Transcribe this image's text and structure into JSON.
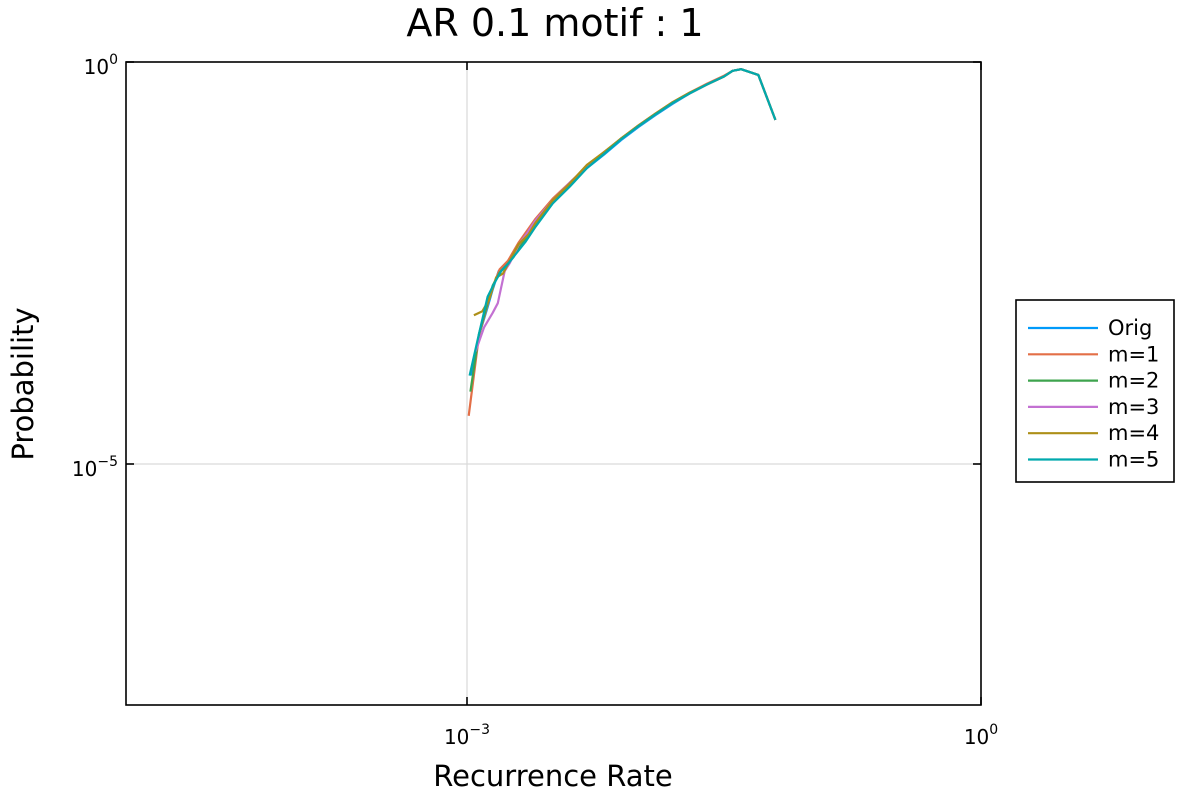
{
  "chart_data": {
    "type": "line",
    "title": "AR 0.1 motif : 1",
    "xlabel": "Recurrence Rate",
    "ylabel": "Probability",
    "xscale": "log10",
    "yscale": "log10",
    "xlim_log10": [
      -1.99,
      0
    ],
    "ylim_log10": [
      -8.0,
      0
    ],
    "x_ticks": [
      {
        "base": "10",
        "exp": "−3"
      },
      {
        "base": "10",
        "exp": "0"
      }
    ],
    "y_ticks": [
      {
        "base": "10",
        "exp": "−5"
      },
      {
        "base": "10",
        "exp": "0"
      }
    ],
    "grid": true,
    "legend_position": "outer-right",
    "series": [
      {
        "name": "Orig",
        "color": "#009AFA",
        "points": [
          [
            -2.975,
            -3.9
          ],
          [
            -2.93,
            -3.4
          ],
          [
            -2.88,
            -3.05
          ],
          [
            -2.85,
            -2.83
          ],
          [
            -2.815,
            -2.6
          ],
          [
            -2.78,
            -2.55
          ],
          [
            -2.75,
            -2.46
          ],
          [
            -2.7,
            -2.3
          ],
          [
            -2.65,
            -2.16
          ],
          [
            -2.6,
            -2.01
          ],
          [
            -2.5,
            -1.73
          ],
          [
            -2.4,
            -1.52
          ],
          [
            -2.3,
            -1.32
          ],
          [
            -2.2,
            -1.15
          ],
          [
            -2.1,
            -0.97
          ],
          [
            -2.0,
            -0.81
          ],
          [
            -1.9,
            -0.66
          ],
          [
            -1.8,
            -0.52
          ],
          [
            -1.7,
            -0.39
          ],
          [
            -1.6,
            -0.28
          ],
          [
            -1.5,
            -0.18
          ],
          [
            -1.45,
            -0.11
          ],
          [
            -1.4,
            -0.09
          ],
          [
            -1.3,
            -0.16
          ],
          [
            -1.2,
            -0.72
          ]
        ]
      },
      {
        "name": "m=1",
        "color": "#E36F47",
        "points": [
          [
            -2.99,
            -4.4
          ],
          [
            -2.93,
            -3.4
          ],
          [
            -2.88,
            -3.02
          ],
          [
            -2.85,
            -2.8
          ],
          [
            -2.81,
            -2.58
          ],
          [
            -2.76,
            -2.47
          ],
          [
            -2.7,
            -2.25
          ],
          [
            -2.65,
            -2.1
          ],
          [
            -2.6,
            -1.95
          ],
          [
            -2.5,
            -1.7
          ],
          [
            -2.4,
            -1.5
          ],
          [
            -2.3,
            -1.3
          ],
          [
            -2.2,
            -1.13
          ],
          [
            -2.1,
            -0.95
          ],
          [
            -2.0,
            -0.79
          ],
          [
            -1.9,
            -0.64
          ],
          [
            -1.8,
            -0.5
          ],
          [
            -1.7,
            -0.38
          ],
          [
            -1.6,
            -0.27
          ],
          [
            -1.5,
            -0.17
          ],
          [
            -1.45,
            -0.11
          ],
          [
            -1.4,
            -0.09
          ],
          [
            -1.3,
            -0.16
          ],
          [
            -1.2,
            -0.72
          ]
        ]
      },
      {
        "name": "m=2",
        "color": "#3EA44E",
        "points": [
          [
            -2.98,
            -4.1
          ],
          [
            -2.93,
            -3.38
          ],
          [
            -2.88,
            -3.0
          ],
          [
            -2.85,
            -2.78
          ],
          [
            -2.81,
            -2.62
          ],
          [
            -2.77,
            -2.53
          ],
          [
            -2.73,
            -2.43
          ],
          [
            -2.68,
            -2.26
          ],
          [
            -2.63,
            -2.11
          ],
          [
            -2.58,
            -1.98
          ],
          [
            -2.48,
            -1.7
          ],
          [
            -2.38,
            -1.5
          ],
          [
            -2.29,
            -1.29
          ],
          [
            -2.2,
            -1.14
          ],
          [
            -2.1,
            -0.95
          ],
          [
            -2.0,
            -0.8
          ],
          [
            -1.9,
            -0.65
          ],
          [
            -1.8,
            -0.51
          ],
          [
            -1.7,
            -0.39
          ],
          [
            -1.6,
            -0.28
          ],
          [
            -1.5,
            -0.18
          ],
          [
            -1.45,
            -0.11
          ],
          [
            -1.4,
            -0.09
          ],
          [
            -1.3,
            -0.16
          ],
          [
            -1.2,
            -0.72
          ]
        ]
      },
      {
        "name": "m=3",
        "color": "#C371D2",
        "points": [
          [
            -2.95,
            -3.6
          ],
          [
            -2.9,
            -3.3
          ],
          [
            -2.85,
            -3.12
          ],
          [
            -2.82,
            -3.0
          ],
          [
            -2.78,
            -2.6
          ],
          [
            -2.75,
            -2.5
          ],
          [
            -2.7,
            -2.28
          ],
          [
            -2.65,
            -2.13
          ],
          [
            -2.6,
            -1.97
          ],
          [
            -2.5,
            -1.72
          ],
          [
            -2.4,
            -1.5
          ],
          [
            -2.3,
            -1.3
          ],
          [
            -2.2,
            -1.12
          ],
          [
            -2.1,
            -0.96
          ],
          [
            -2.0,
            -0.8
          ],
          [
            -1.9,
            -0.65
          ],
          [
            -1.8,
            -0.51
          ],
          [
            -1.7,
            -0.39
          ],
          [
            -1.6,
            -0.28
          ],
          [
            -1.5,
            -0.18
          ],
          [
            -1.45,
            -0.11
          ],
          [
            -1.4,
            -0.09
          ],
          [
            -1.3,
            -0.16
          ],
          [
            -1.2,
            -0.72
          ]
        ]
      },
      {
        "name": "m=4",
        "color": "#AD8F18",
        "points": [
          [
            -2.96,
            -3.15
          ],
          [
            -2.91,
            -3.1
          ],
          [
            -2.87,
            -2.95
          ],
          [
            -2.83,
            -2.68
          ],
          [
            -2.79,
            -2.63
          ],
          [
            -2.75,
            -2.47
          ],
          [
            -2.7,
            -2.27
          ],
          [
            -2.64,
            -2.14
          ],
          [
            -2.6,
            -2.0
          ],
          [
            -2.5,
            -1.72
          ],
          [
            -2.4,
            -1.51
          ],
          [
            -2.3,
            -1.28
          ],
          [
            -2.2,
            -1.12
          ],
          [
            -2.1,
            -0.95
          ],
          [
            -2.0,
            -0.79
          ],
          [
            -1.9,
            -0.64
          ],
          [
            -1.8,
            -0.5
          ],
          [
            -1.7,
            -0.38
          ],
          [
            -1.6,
            -0.28
          ],
          [
            -1.5,
            -0.18
          ],
          [
            -1.45,
            -0.11
          ],
          [
            -1.4,
            -0.09
          ],
          [
            -1.3,
            -0.16
          ],
          [
            -1.2,
            -0.72
          ]
        ]
      },
      {
        "name": "m=5",
        "color": "#00A9AD",
        "points": [
          [
            -2.985,
            -3.9
          ],
          [
            -2.93,
            -3.38
          ],
          [
            -2.88,
            -2.92
          ],
          [
            -2.84,
            -2.75
          ],
          [
            -2.8,
            -2.6
          ],
          [
            -2.76,
            -2.51
          ],
          [
            -2.72,
            -2.4
          ],
          [
            -2.66,
            -2.24
          ],
          [
            -2.6,
            -2.05
          ],
          [
            -2.5,
            -1.76
          ],
          [
            -2.4,
            -1.55
          ],
          [
            -2.3,
            -1.32
          ],
          [
            -2.2,
            -1.14
          ],
          [
            -2.1,
            -0.96
          ],
          [
            -2.0,
            -0.8
          ],
          [
            -1.9,
            -0.65
          ],
          [
            -1.8,
            -0.51
          ],
          [
            -1.7,
            -0.39
          ],
          [
            -1.6,
            -0.28
          ],
          [
            -1.5,
            -0.18
          ],
          [
            -1.45,
            -0.11
          ],
          [
            -1.4,
            -0.09
          ],
          [
            -1.3,
            -0.16
          ],
          [
            -1.2,
            -0.72
          ]
        ]
      }
    ]
  }
}
